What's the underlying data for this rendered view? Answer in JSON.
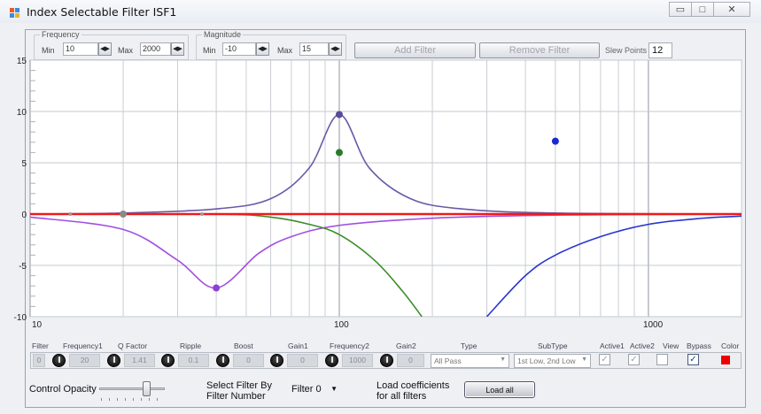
{
  "window": {
    "title": "Index Selectable Filter ISF1",
    "controls": {
      "minimize": "▭",
      "maximize": "□",
      "close": "✕"
    }
  },
  "frequency": {
    "legend": "Frequency",
    "min_label": "Min",
    "min_value": "10",
    "max_label": "Max",
    "max_value": "2000"
  },
  "magnitude": {
    "legend": "Magnitude",
    "min_label": "Min",
    "min_value": "-10",
    "max_label": "Max",
    "max_value": "15"
  },
  "toolbar": {
    "add_filter": "Add Filter",
    "remove_filter": "Remove Filter",
    "slew_points_label": "Slew Points",
    "slew_points_value": "12"
  },
  "chart_data": {
    "type": "line",
    "x_scale": "log",
    "xlim": [
      10,
      2000
    ],
    "ylim": [
      -10,
      15
    ],
    "x_tick_labels": [
      "10",
      "100",
      "1000"
    ],
    "y_tick_labels": [
      "15",
      "10",
      "5",
      "0",
      "-5",
      "-10"
    ],
    "grid": true,
    "series": [
      {
        "color": "#6a5aa8",
        "points": [
          [
            10,
            0
          ],
          [
            20,
            0.1
          ],
          [
            40,
            0.5
          ],
          [
            60,
            1.5
          ],
          [
            80,
            4.5
          ],
          [
            100,
            9.7
          ],
          [
            125,
            4.5
          ],
          [
            170,
            1.5
          ],
          [
            250,
            0.5
          ],
          [
            500,
            0.1
          ],
          [
            2000,
            0
          ]
        ]
      },
      {
        "color": "#a24fe0",
        "points": [
          [
            10,
            -0.3
          ],
          [
            20,
            -1.5
          ],
          [
            30,
            -4.5
          ],
          [
            40,
            -7.2
          ],
          [
            55,
            -3.8
          ],
          [
            70,
            -2.2
          ],
          [
            100,
            -1.1
          ],
          [
            200,
            -0.4
          ],
          [
            500,
            -0.1
          ],
          [
            2000,
            0
          ]
        ]
      },
      {
        "color": "#3c8c2a",
        "points": [
          [
            10,
            0
          ],
          [
            40,
            0
          ],
          [
            60,
            -0.3
          ],
          [
            80,
            -1
          ],
          [
            100,
            -2
          ],
          [
            130,
            -4.5
          ],
          [
            160,
            -7.5
          ],
          [
            185,
            -10
          ]
        ]
      },
      {
        "color": "#2a35d0",
        "points": [
          [
            300,
            -10
          ],
          [
            400,
            -6
          ],
          [
            500,
            -4
          ],
          [
            700,
            -2.2
          ],
          [
            1000,
            -1
          ],
          [
            1500,
            -0.4
          ],
          [
            2000,
            -0.2
          ]
        ]
      },
      {
        "color": "#ee1a1a",
        "points": [
          [
            10,
            0
          ],
          [
            2000,
            0
          ]
        ]
      }
    ],
    "markers": [
      {
        "x": 100,
        "y": 9.7,
        "color": "#5a4a98"
      },
      {
        "x": 100,
        "y": 6,
        "color": "#2a7a2a"
      },
      {
        "x": 40,
        "y": -7.2,
        "color": "#8e3fd6"
      },
      {
        "x": 500,
        "y": 7.1,
        "color": "#1a2ad0"
      },
      {
        "x": 20,
        "y": 0,
        "color": "#8a8a8a"
      }
    ]
  },
  "params": {
    "headers": [
      "Filter",
      "Frequency1",
      "Q Factor",
      "Ripple",
      "Boost",
      "Gain1",
      "Frequency2",
      "Gain2",
      "Type",
      "SubType",
      "Active1",
      "Active2",
      "View",
      "Bypass",
      "Color"
    ],
    "filter_index": "0",
    "frequency1": "20",
    "q_factor": "1.41",
    "ripple": "0.1",
    "boost": "0",
    "gain1": "0",
    "frequency2": "1000",
    "gain2": "0",
    "type": "All Pass",
    "subtype": "1st Low, 2nd Low",
    "active1": "✓",
    "active2": "✓",
    "view": "",
    "bypass": "✓",
    "color": "#ee0000"
  },
  "bottom": {
    "control_opacity": "Control Opacity",
    "opacity_level": 0.75,
    "select_filter_line1": "Select Filter By",
    "select_filter_line2": "Filter Number",
    "filter_select": "Filter 0",
    "load_coef_line1": "Load coefficients",
    "load_coef_line2": "for all filters",
    "load_all": "Load all"
  }
}
